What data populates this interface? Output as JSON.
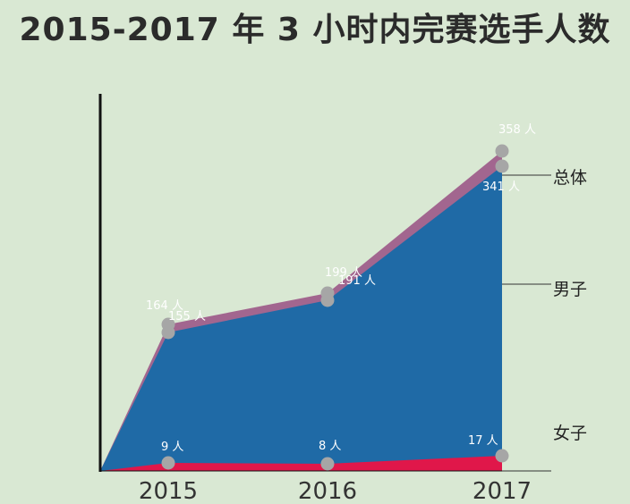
{
  "title": "2015-2017 年 3 小时内完赛选手人数",
  "colors": {
    "background": "#d9e8d3",
    "total": "#a2668f",
    "male": "#1f6aa6",
    "female": "#e0174a",
    "marker": "#a6a6a6",
    "axis": "#111111"
  },
  "chart_data": {
    "type": "area",
    "title": "2015-2017 年 3 小时内完赛选手人数",
    "categories": [
      "2015",
      "2016",
      "2017"
    ],
    "series": [
      {
        "name": "总体",
        "values": [
          164,
          199,
          358
        ],
        "labels": [
          "164 人",
          "199 人",
          "358 人"
        ]
      },
      {
        "name": "男子",
        "values": [
          155,
          191,
          341
        ],
        "labels": [
          "155 人",
          "191 人",
          "341 人"
        ]
      },
      {
        "name": "女子",
        "values": [
          9,
          8,
          17
        ],
        "labels": [
          "9 人",
          "8 人",
          "17 人"
        ]
      }
    ],
    "ylim": [
      0,
      400
    ],
    "grid": false,
    "legend": "right"
  }
}
